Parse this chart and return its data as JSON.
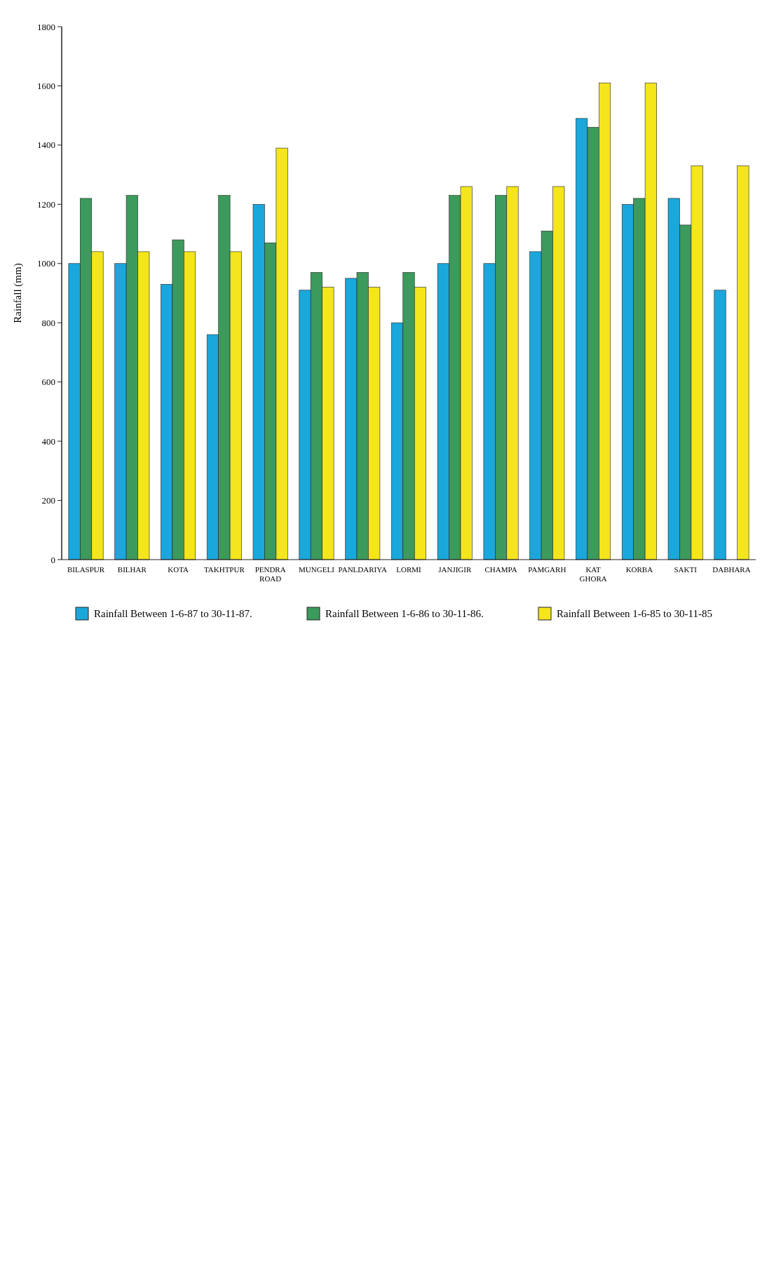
{
  "chart_data": {
    "type": "bar",
    "ylabel": "Rainfall (mm)",
    "categories": [
      "BILASPUR",
      "BILHAR",
      "KOTA",
      "TAKHTPUR",
      "PENDRA ROAD",
      "MUNGELI",
      "PANLDARIYA",
      "LORMI",
      "JANJIGIR",
      "CHAMPA",
      "PAMGARH",
      "KAT GHORA",
      "KORBA",
      "SAKTI",
      "DABHARA"
    ],
    "series": [
      {
        "name": "Rainfall Between 1-6-87 to 30-11-87.",
        "color": "#1aa7dc",
        "values": [
          1000,
          1000,
          930,
          760,
          1200,
          910,
          950,
          800,
          1000,
          1000,
          1040,
          1490,
          1200,
          1220,
          910
        ]
      },
      {
        "name": "Rainfall Between 1-6-86 to 30-11-86.",
        "color": "#3c9a5c",
        "values": [
          1220,
          1230,
          1080,
          1230,
          1070,
          970,
          970,
          970,
          1230,
          1230,
          1110,
          1460,
          1220,
          1130,
          null
        ]
      },
      {
        "name": "Rainfall Between 1-6-85 to 30-11-85",
        "color": "#f4e51c",
        "values": [
          1040,
          1040,
          1040,
          1040,
          1390,
          920,
          920,
          920,
          1260,
          1260,
          1260,
          1610,
          1610,
          1330,
          1330
        ]
      }
    ],
    "ylim": [
      0,
      1800
    ],
    "yticks": [
      0,
      200,
      400,
      600,
      800,
      1000,
      1200,
      1400,
      1600,
      1800
    ],
    "legend": "bottom"
  }
}
